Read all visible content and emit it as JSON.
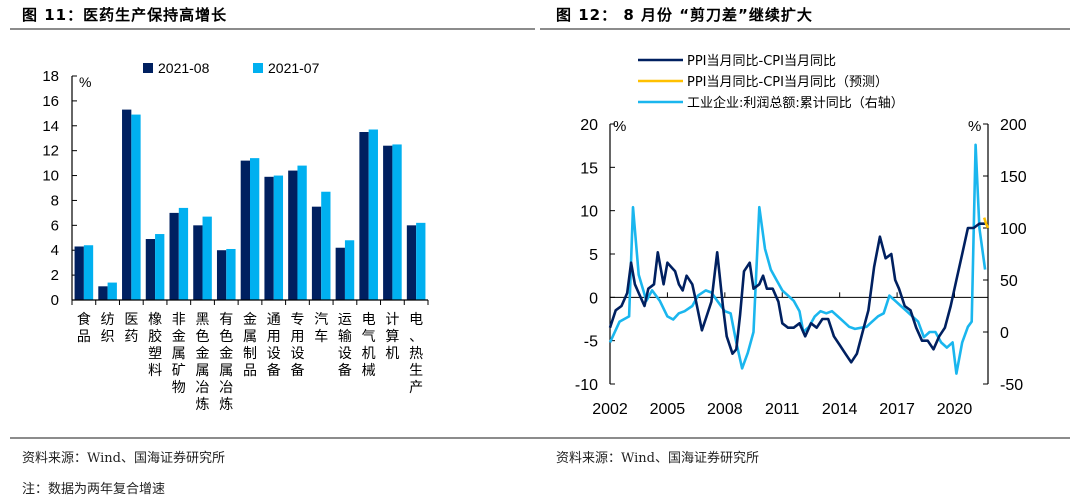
{
  "figures": {
    "left": {
      "title": "图 11：医药生产保持高增长",
      "source": "资料来源：Wind、国海证券研究所",
      "note": "注：数据为两年复合增速"
    },
    "right": {
      "title": "图 12：  8 月份 “剪刀差”继续扩大",
      "source": "资料来源：Wind、国海证券研究所"
    }
  },
  "chart_data": [
    {
      "type": "bar",
      "title": "医药生产保持高增长",
      "ylabel": "%",
      "ylim": [
        0,
        18
      ],
      "yticks": [
        0,
        2,
        4,
        6,
        8,
        10,
        12,
        14,
        16,
        18
      ],
      "grid": false,
      "legend_position": "top",
      "categories": [
        "食品",
        "纺织",
        "医药",
        "橡胶塑料",
        "非金属矿物",
        "黑色金属冶炼",
        "有色金属冶炼",
        "金属制品",
        "通用设备",
        "专用设备",
        "汽车",
        "运输设备",
        "电气机械",
        "计算机",
        "电、热生产"
      ],
      "series": [
        {
          "name": "2021-08",
          "color": "#002060",
          "values": [
            4.3,
            1.1,
            15.3,
            4.9,
            7.0,
            6.0,
            4.0,
            11.2,
            9.9,
            10.4,
            7.5,
            4.2,
            13.5,
            12.4,
            6.0
          ]
        },
        {
          "name": "2021-07",
          "color": "#00b0f0",
          "values": [
            4.4,
            1.4,
            14.9,
            5.3,
            7.4,
            6.7,
            4.1,
            11.4,
            10.0,
            10.8,
            8.7,
            4.8,
            13.7,
            12.5,
            6.2
          ]
        }
      ]
    },
    {
      "type": "line",
      "title": "8 月份“剪刀差”继续扩大",
      "x_ticks": [
        "2002",
        "2005",
        "2008",
        "2011",
        "2014",
        "2017",
        "2020"
      ],
      "xlim": [
        2002,
        2021.75
      ],
      "y_left": {
        "label": "%",
        "lim": [
          -10,
          20
        ],
        "ticks": [
          -10,
          -5,
          0,
          5,
          10,
          15,
          20
        ]
      },
      "y_right": {
        "label": "%",
        "lim": [
          -50,
          200
        ],
        "ticks": [
          -50,
          0,
          50,
          100,
          150,
          200
        ]
      },
      "grid": false,
      "legend_position": "top",
      "series": [
        {
          "name": "PPI当月同比-CPI当月同比",
          "color": "#002060",
          "axis": "left",
          "x": [
            2002.0,
            2002.3,
            2002.6,
            2002.9,
            2003.1,
            2003.3,
            2003.5,
            2003.8,
            2004.0,
            2004.3,
            2004.5,
            2004.8,
            2005.0,
            2005.2,
            2005.4,
            2005.6,
            2005.8,
            2006.0,
            2006.3,
            2006.5,
            2006.8,
            2007.0,
            2007.3,
            2007.6,
            2007.9,
            2008.1,
            2008.4,
            2008.6,
            2008.8,
            2009.0,
            2009.3,
            2009.5,
            2009.8,
            2010.0,
            2010.2,
            2010.5,
            2010.8,
            2011.0,
            2011.3,
            2011.6,
            2011.9,
            2012.2,
            2012.5,
            2012.8,
            2013.1,
            2013.4,
            2013.7,
            2014.0,
            2014.3,
            2014.6,
            2014.9,
            2015.2,
            2015.5,
            2015.8,
            2016.1,
            2016.4,
            2016.7,
            2016.9,
            2017.1,
            2017.4,
            2017.7,
            2018.0,
            2018.3,
            2018.6,
            2018.9,
            2019.2,
            2019.5,
            2019.8,
            2020.1,
            2020.4,
            2020.7,
            2021.0,
            2021.3,
            2021.6
          ],
          "values": [
            -3.5,
            -1.5,
            -1.0,
            0.5,
            4.0,
            1.5,
            0.5,
            -1.0,
            1.0,
            1.5,
            5.2,
            1.5,
            4.0,
            3.5,
            3.0,
            1.5,
            0.8,
            2.5,
            1.5,
            -0.5,
            -3.8,
            -2.5,
            -0.5,
            5.2,
            -1.0,
            -4.5,
            -6.5,
            -6.0,
            -2.0,
            3.0,
            4.0,
            1.0,
            1.5,
            2.5,
            1.0,
            1.0,
            -0.5,
            -3.0,
            -3.5,
            -3.5,
            -3.0,
            -4.5,
            -3.0,
            -3.5,
            -2.5,
            -2.5,
            -4.5,
            -5.5,
            -6.5,
            -7.5,
            -6.5,
            -4.0,
            -1.5,
            3.5,
            7.0,
            4.5,
            5.0,
            2.0,
            1.0,
            -1.0,
            -1.5,
            -3.5,
            -5.0,
            -5.0,
            -6.0,
            -4.5,
            -3.5,
            -1.0,
            2.0,
            5.0,
            8.0,
            8.0,
            8.5,
            8.5
          ]
        },
        {
          "name": "PPI当月同比-CPI当月同比（预测）",
          "color": "#ffc000",
          "axis": "left",
          "x": [
            2021.55,
            2021.65,
            2021.75
          ],
          "values": [
            9.2,
            8.5,
            8.0
          ]
        },
        {
          "name": "工业企业:利润总额:累计同比（右轴）",
          "color": "#1ab6ee",
          "axis": "right",
          "x": [
            2002.0,
            2002.5,
            2003.0,
            2003.2,
            2003.5,
            2003.9,
            2004.2,
            2004.6,
            2005.0,
            2005.3,
            2005.6,
            2005.9,
            2006.3,
            2006.6,
            2007.0,
            2007.3,
            2007.6,
            2008.0,
            2008.3,
            2008.6,
            2008.9,
            2009.2,
            2009.5,
            2009.8,
            2010.1,
            2010.4,
            2010.7,
            2011.0,
            2011.3,
            2011.6,
            2011.9,
            2012.1,
            2012.4,
            2012.7,
            2013.0,
            2013.3,
            2013.6,
            2013.9,
            2014.2,
            2014.5,
            2014.8,
            2015.1,
            2015.4,
            2015.7,
            2016.0,
            2016.3,
            2016.6,
            2016.9,
            2017.2,
            2017.5,
            2017.8,
            2018.1,
            2018.4,
            2018.7,
            2019.0,
            2019.3,
            2019.6,
            2019.9,
            2020.1,
            2020.4,
            2020.7,
            2020.9,
            2021.1,
            2021.3,
            2021.6
          ],
          "values": [
            -10,
            10,
            15,
            120,
            55,
            30,
            40,
            30,
            15,
            12,
            18,
            20,
            25,
            35,
            40,
            38,
            30,
            20,
            18,
            -10,
            -35,
            -20,
            0,
            120,
            80,
            60,
            50,
            40,
            35,
            30,
            20,
            0,
            5,
            15,
            20,
            18,
            20,
            15,
            10,
            5,
            3,
            4,
            5,
            10,
            15,
            18,
            35,
            30,
            25,
            20,
            15,
            10,
            -5,
            0,
            0,
            -10,
            -15,
            -10,
            -40,
            -10,
            5,
            10,
            180,
            100,
            60
          ]
        }
      ]
    }
  ]
}
